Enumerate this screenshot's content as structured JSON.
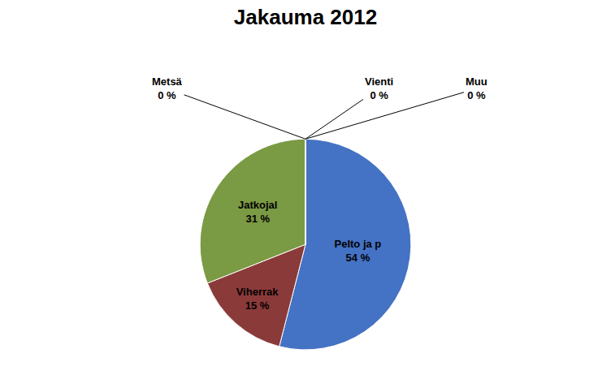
{
  "chart_data": {
    "type": "pie",
    "title": "Jakauma 2012",
    "categories": [
      "Pelto ja p",
      "Viherrak",
      "Jatkojal",
      "Metsä",
      "Vienti",
      "Muu"
    ],
    "values": [
      54,
      15,
      31,
      0,
      0,
      0
    ],
    "value_labels": [
      "54 %",
      "15 %",
      "31 %",
      "0 %",
      "0 %",
      "0 %"
    ],
    "colors": [
      "#4472C4",
      "#8B3A3A",
      "#7B9A44",
      "#4472C4",
      "#4472C4",
      "#4472C4"
    ],
    "data_labels": true
  }
}
